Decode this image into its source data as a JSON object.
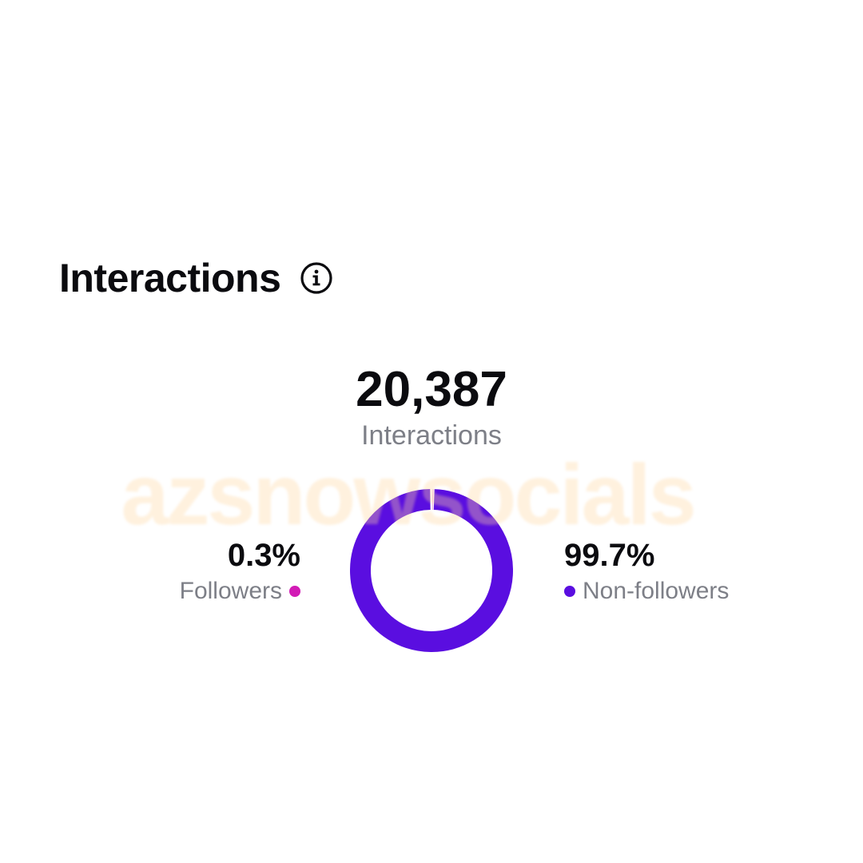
{
  "section": {
    "title": "Interactions",
    "info_icon": "info-icon"
  },
  "summary": {
    "total_value": "20,387",
    "total_label": "Interactions"
  },
  "chart_data": {
    "type": "pie",
    "categories": [
      "Followers",
      "Non-followers"
    ],
    "values": [
      0.3,
      99.7
    ],
    "value_labels": [
      "0.3%",
      "99.7%"
    ],
    "colors": [
      "#d21bb5",
      "#5a0ee0"
    ],
    "legend_placement": "sides"
  },
  "watermark": "azsnowsocials"
}
